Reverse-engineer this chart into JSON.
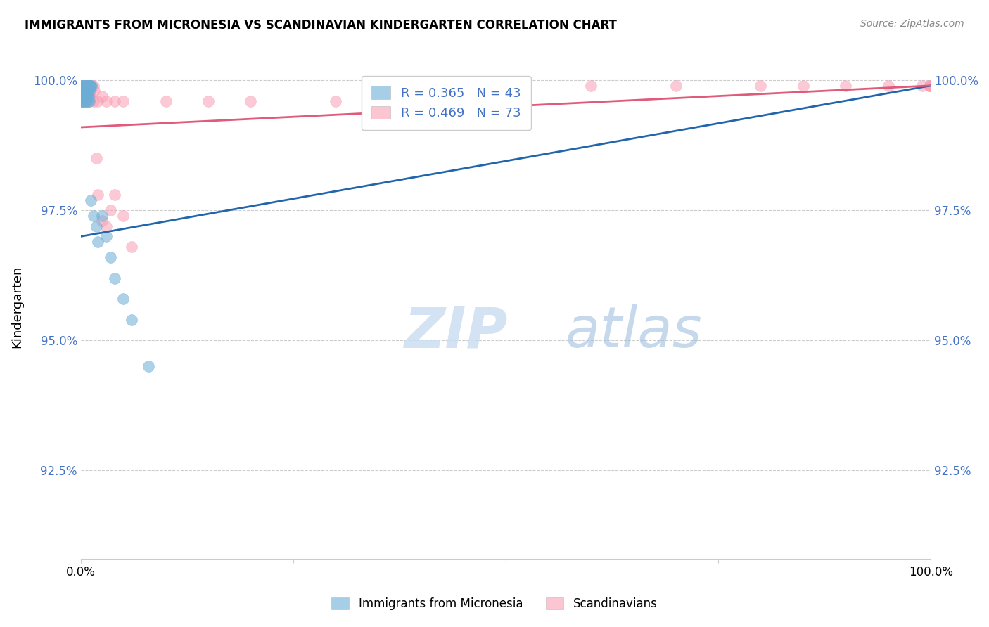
{
  "title": "IMMIGRANTS FROM MICRONESIA VS SCANDINAVIAN KINDERGARTEN CORRELATION CHART",
  "source": "Source: ZipAtlas.com",
  "ylabel": "Kindergarten",
  "ytick_labels": [
    "100.0%",
    "97.5%",
    "95.0%",
    "92.5%"
  ],
  "ytick_values": [
    1.0,
    0.975,
    0.95,
    0.925
  ],
  "xlim": [
    0.0,
    1.0
  ],
  "ylim": [
    0.908,
    1.005
  ],
  "blue_color": "#6baed6",
  "pink_color": "#fa9fb5",
  "blue_line_color": "#2166ac",
  "pink_line_color": "#e05a7a",
  "legend_label1": "Immigrants from Micronesia",
  "legend_label2": "Scandinavians",
  "legend1_r": "R = 0.365",
  "legend1_n": "N = 43",
  "legend2_r": "R = 0.469",
  "legend2_n": "N = 73",
  "blue_line_x": [
    0.0,
    1.0
  ],
  "blue_line_y": [
    0.97,
    0.999
  ],
  "pink_line_x": [
    0.0,
    1.0
  ],
  "pink_line_y": [
    0.991,
    0.999
  ],
  "blue_scatter_x": [
    0.001,
    0.002,
    0.002,
    0.003,
    0.003,
    0.004,
    0.004,
    0.005,
    0.005,
    0.006,
    0.006,
    0.007,
    0.007,
    0.008,
    0.008,
    0.009,
    0.009,
    0.01,
    0.01,
    0.011,
    0.012,
    0.013,
    0.001,
    0.002,
    0.003,
    0.004,
    0.005,
    0.006,
    0.007,
    0.008,
    0.009,
    0.01,
    0.012,
    0.015,
    0.018,
    0.02,
    0.025,
    0.03,
    0.035,
    0.04,
    0.05,
    0.06,
    0.08
  ],
  "blue_scatter_y": [
    0.999,
    0.999,
    0.998,
    0.999,
    0.998,
    0.999,
    0.998,
    0.999,
    0.998,
    0.999,
    0.998,
    0.999,
    0.998,
    0.999,
    0.997,
    0.999,
    0.998,
    0.999,
    0.998,
    0.999,
    0.999,
    0.999,
    0.996,
    0.996,
    0.997,
    0.996,
    0.997,
    0.996,
    0.997,
    0.996,
    0.997,
    0.996,
    0.977,
    0.974,
    0.972,
    0.969,
    0.974,
    0.97,
    0.966,
    0.962,
    0.958,
    0.954,
    0.945
  ],
  "pink_scatter_x": [
    0.001,
    0.002,
    0.002,
    0.003,
    0.003,
    0.004,
    0.004,
    0.005,
    0.005,
    0.006,
    0.006,
    0.007,
    0.007,
    0.008,
    0.008,
    0.009,
    0.009,
    0.01,
    0.01,
    0.011,
    0.012,
    0.013,
    0.015,
    0.016,
    0.018,
    0.02,
    0.025,
    0.03,
    0.035,
    0.04,
    0.05,
    0.06,
    0.001,
    0.002,
    0.003,
    0.004,
    0.005,
    0.006,
    0.007,
    0.008,
    0.009,
    0.01,
    0.012,
    0.015,
    0.02,
    0.025,
    0.03,
    0.04,
    0.05,
    0.1,
    0.15,
    0.2,
    0.3,
    0.4,
    0.5,
    0.6,
    0.7,
    0.8,
    0.85,
    0.9,
    0.95,
    0.99,
    0.999,
    0.999,
    0.999,
    0.999,
    0.999,
    0.999,
    0.999,
    0.999,
    0.999,
    0.999,
    0.999
  ],
  "pink_scatter_y": [
    0.999,
    0.999,
    0.998,
    0.999,
    0.998,
    0.999,
    0.998,
    0.999,
    0.998,
    0.999,
    0.998,
    0.999,
    0.998,
    0.999,
    0.997,
    0.999,
    0.998,
    0.999,
    0.997,
    0.999,
    0.998,
    0.999,
    0.999,
    0.998,
    0.985,
    0.978,
    0.973,
    0.972,
    0.975,
    0.978,
    0.974,
    0.968,
    0.996,
    0.996,
    0.997,
    0.996,
    0.997,
    0.996,
    0.997,
    0.996,
    0.997,
    0.996,
    0.997,
    0.996,
    0.996,
    0.997,
    0.996,
    0.996,
    0.996,
    0.996,
    0.996,
    0.996,
    0.996,
    0.999,
    0.999,
    0.999,
    0.999,
    0.999,
    0.999,
    0.999,
    0.999,
    0.999,
    0.999,
    0.999,
    0.999,
    0.999,
    0.999,
    0.999,
    0.999,
    0.999,
    0.999,
    0.999,
    0.999
  ]
}
